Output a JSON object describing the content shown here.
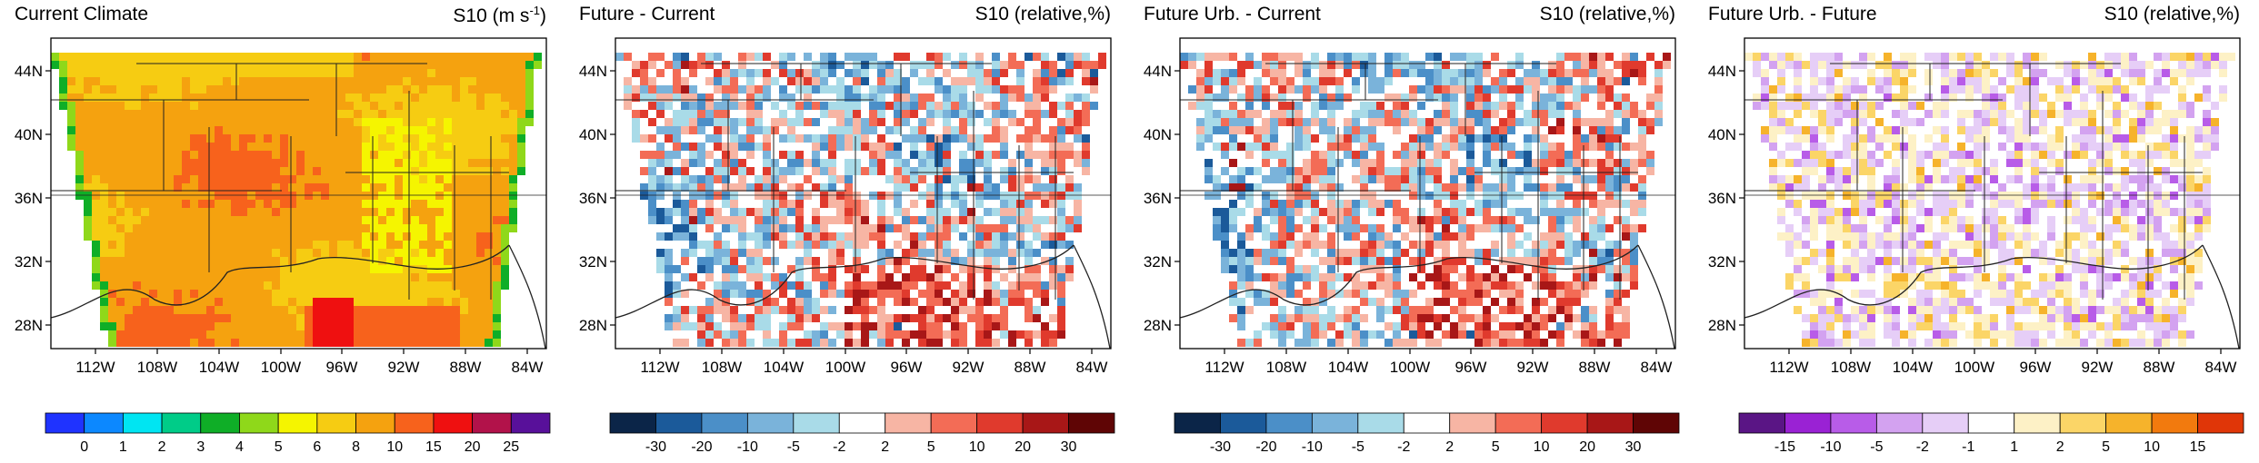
{
  "chart_data": [
    {
      "type": "heatmap",
      "title": "Current Climate",
      "variable": "S10",
      "unit": "(m s",
      "unit_sup": "-1",
      "unit_close": ")",
      "lat_ticks": [
        "44N",
        "40N",
        "36N",
        "32N",
        "28N"
      ],
      "lon_ticks": [
        "112W",
        "108W",
        "104W",
        "100W",
        "96W",
        "92W",
        "88W",
        "84W"
      ],
      "colorbar": {
        "labels": [
          "0",
          "1",
          "2",
          "3",
          "4",
          "5",
          "6",
          "8",
          "10",
          "15",
          "20",
          "25"
        ],
        "colors": [
          "#1f33ff",
          "#0c88ff",
          "#00e5f2",
          "#00cc88",
          "#0fae27",
          "#8fd81a",
          "#f5f500",
          "#f6cc12",
          "#f5a20f",
          "#f7621c",
          "#ef1010",
          "#b2124a",
          "#58109a"
        ]
      }
    },
    {
      "type": "heatmap",
      "title": "Future - Current",
      "variable": "S10",
      "unit": "(relative,%)",
      "lat_ticks": [
        "44N",
        "40N",
        "36N",
        "32N",
        "28N"
      ],
      "lon_ticks": [
        "112W",
        "108W",
        "104W",
        "100W",
        "96W",
        "92W",
        "88W",
        "84W"
      ],
      "colorbar": {
        "labels": [
          "-30",
          "-20",
          "-10",
          "-5",
          "-2",
          "2",
          "5",
          "10",
          "20",
          "30"
        ],
        "colors": [
          "#0b2548",
          "#1b5a9a",
          "#4b8fc8",
          "#7ab3da",
          "#a9dbe8",
          "#ffffff",
          "#f7b5a4",
          "#f36c56",
          "#e03a2d",
          "#a81717",
          "#5f0505"
        ]
      }
    },
    {
      "type": "heatmap",
      "title": "Future Urb. - Current",
      "variable": "S10",
      "unit": "(relative,%)",
      "lat_ticks": [
        "44N",
        "40N",
        "36N",
        "32N",
        "28N"
      ],
      "lon_ticks": [
        "112W",
        "108W",
        "104W",
        "100W",
        "96W",
        "92W",
        "88W",
        "84W"
      ],
      "colorbar": {
        "labels": [
          "-30",
          "-20",
          "-10",
          "-5",
          "-2",
          "2",
          "5",
          "10",
          "20",
          "30"
        ],
        "colors": [
          "#0b2548",
          "#1b5a9a",
          "#4b8fc8",
          "#7ab3da",
          "#a9dbe8",
          "#ffffff",
          "#f7b5a4",
          "#f36c56",
          "#e03a2d",
          "#a81717",
          "#5f0505"
        ]
      }
    },
    {
      "type": "heatmap",
      "title": "Future Urb. - Future",
      "variable": "S10",
      "unit": "(relative,%)",
      "lat_ticks": [
        "44N",
        "40N",
        "36N",
        "32N",
        "28N"
      ],
      "lon_ticks": [
        "112W",
        "108W",
        "104W",
        "100W",
        "96W",
        "92W",
        "88W",
        "84W"
      ],
      "colorbar": {
        "labels": [
          "-15",
          "-10",
          "-5",
          "-2",
          "-1",
          "1",
          "2",
          "5",
          "10",
          "15"
        ],
        "colors": [
          "#5a1585",
          "#9a22d4",
          "#b85ce8",
          "#d3a2f0",
          "#e6cef7",
          "#ffffff",
          "#fdf1c6",
          "#fbd567",
          "#f6b32b",
          "#f27a0e",
          "#e03608"
        ]
      }
    }
  ]
}
